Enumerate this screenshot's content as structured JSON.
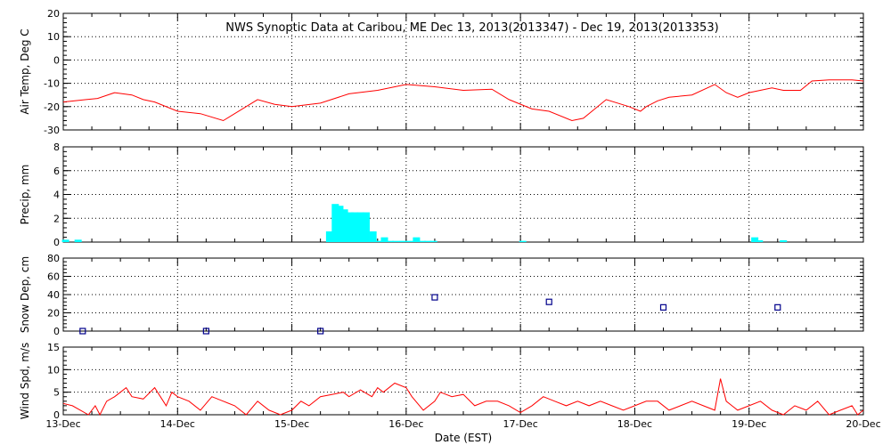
{
  "title": "NWS Synoptic Data at Caribou, ME    Dec 13, 2013(2013347) - Dec 19, 2013(2013353)",
  "xlabel": "Date (EST)",
  "colors": {
    "temp_line": "#ff0000",
    "precip_bar": "#00ffff",
    "snow_marker": "#00008b",
    "wind_line": "#ff0000",
    "axes": "#000000"
  },
  "chart_data": [
    {
      "type": "line",
      "panel": "air_temp",
      "ylabel": "Air Temp, Deg C",
      "ylim": [
        -30,
        20
      ],
      "yticks": [
        20,
        10,
        0,
        -10,
        -20,
        -30
      ],
      "x_day_range": [
        0,
        7
      ],
      "x": [
        0,
        0.1,
        0.2,
        0.3,
        0.45,
        0.6,
        0.7,
        0.8,
        1.0,
        1.2,
        1.4,
        1.7,
        1.85,
        2.0,
        2.25,
        2.5,
        2.75,
        3.0,
        3.25,
        3.5,
        3.75,
        3.9,
        4.1,
        4.25,
        4.45,
        4.55,
        4.75,
        4.95,
        5.05,
        5.1,
        5.2,
        5.3,
        5.5,
        5.7,
        5.8,
        5.9,
        6.0,
        6.2,
        6.3,
        6.45,
        6.55,
        6.7,
        6.8,
        6.9,
        7.0
      ],
      "y": [
        -18,
        -17.5,
        -17,
        -16.5,
        -14,
        -15,
        -17,
        -18,
        -22,
        -23,
        -26,
        -17,
        -19,
        -20,
        -18.5,
        -14.5,
        -13,
        -10.5,
        -11.5,
        -13,
        -12.5,
        -17,
        -21,
        -22,
        -26,
        -25,
        -17,
        -20,
        -22,
        -20,
        -17.5,
        -16,
        -15,
        -10.5,
        -14,
        -16,
        -14,
        -12,
        -13,
        -13,
        -9,
        -8.5,
        -8.5,
        -8.5,
        -9
      ]
    },
    {
      "type": "bar",
      "panel": "precip",
      "ylabel": "Precip, mm",
      "ylim": [
        0,
        8
      ],
      "yticks": [
        8,
        6,
        4,
        2,
        0
      ],
      "x": [
        0.02,
        0.13,
        2.33,
        2.38,
        2.42,
        2.46,
        2.51,
        2.55,
        2.6,
        2.65,
        2.71,
        2.77,
        2.81,
        2.86,
        2.91,
        2.97,
        3.03,
        3.09,
        3.14,
        3.19,
        3.24,
        4.02,
        6.05,
        6.09,
        6.3
      ],
      "values": [
        0.2,
        0.2,
        0.9,
        3.2,
        3.05,
        2.75,
        2.5,
        2.5,
        2.5,
        2.5,
        0.9,
        0.1,
        0.4,
        0.1,
        0.1,
        0.1,
        0.1,
        0.4,
        0.1,
        0.1,
        0.1,
        0.1,
        0.4,
        0.15,
        0.15
      ]
    },
    {
      "type": "scatter",
      "panel": "snow_depth",
      "ylabel": "Snow Dep, cm",
      "ylim": [
        0,
        80
      ],
      "yticks": [
        80,
        60,
        40,
        20,
        0
      ],
      "x": [
        0.17,
        1.25,
        2.25,
        3.25,
        4.25,
        5.25,
        6.25
      ],
      "values": [
        0,
        0,
        0,
        37,
        32,
        26,
        26
      ]
    },
    {
      "type": "line",
      "panel": "wind_speed",
      "ylabel": "Wind Spd, m/s",
      "ylim": [
        0,
        15
      ],
      "yticks": [
        15,
        10,
        5,
        0
      ],
      "xticks": [
        "13-Dec",
        "14-Dec",
        "15-Dec",
        "16-Dec",
        "17-Dec",
        "18-Dec",
        "19-Dec",
        "20-Dec"
      ],
      "x": [
        0,
        0.08,
        0.15,
        0.22,
        0.28,
        0.32,
        0.38,
        0.45,
        0.5,
        0.55,
        0.6,
        0.7,
        0.8,
        0.85,
        0.9,
        0.95,
        1.0,
        1.1,
        1.2,
        1.3,
        1.4,
        1.5,
        1.6,
        1.7,
        1.8,
        1.9,
        2.0,
        2.08,
        2.15,
        2.25,
        2.35,
        2.45,
        2.5,
        2.6,
        2.7,
        2.75,
        2.8,
        2.9,
        3.0,
        3.05,
        3.15,
        3.25,
        3.3,
        3.4,
        3.5,
        3.6,
        3.7,
        3.8,
        3.9,
        4.0,
        4.1,
        4.2,
        4.3,
        4.4,
        4.5,
        4.6,
        4.7,
        4.8,
        4.9,
        5.0,
        5.1,
        5.2,
        5.3,
        5.4,
        5.5,
        5.6,
        5.7,
        5.75,
        5.8,
        5.85,
        5.9,
        6.0,
        6.1,
        6.2,
        6.3,
        6.4,
        6.5,
        6.6,
        6.7,
        6.8,
        6.9,
        6.95,
        7.0
      ],
      "values": [
        2.5,
        2,
        1,
        0,
        2,
        0,
        3,
        4,
        5,
        6,
        4,
        3.5,
        6,
        4,
        2,
        5,
        4,
        3,
        1,
        4,
        3,
        2,
        0,
        3,
        1,
        0,
        1,
        3,
        2,
        4,
        4.5,
        5,
        4,
        5.5,
        4,
        6,
        5,
        7,
        6,
        4,
        1,
        3,
        5,
        4,
        4.5,
        2,
        3,
        3,
        2,
        0.5,
        2,
        4,
        3,
        2,
        3,
        2,
        3,
        2,
        1,
        2,
        3,
        3,
        1,
        2,
        3,
        2,
        1,
        8,
        3,
        2,
        1,
        2,
        3,
        1,
        0,
        2,
        1,
        3,
        0,
        1,
        2,
        0,
        1
      ]
    }
  ]
}
